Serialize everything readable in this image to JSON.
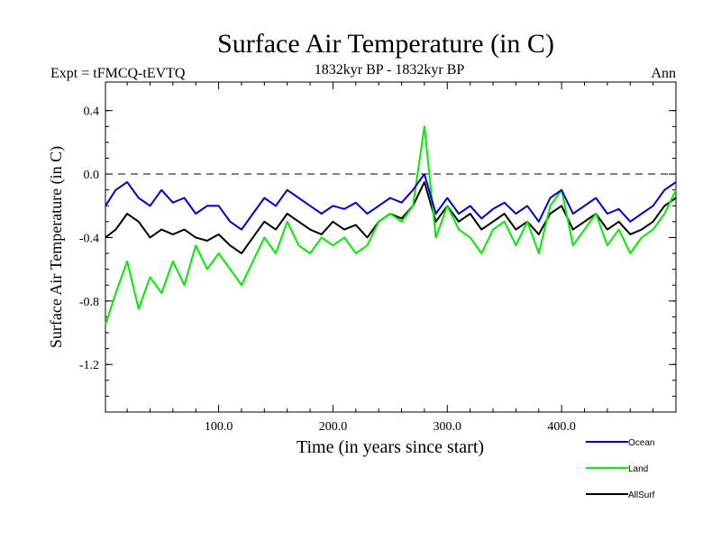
{
  "chart_data": {
    "type": "line",
    "title": "Surface Air Temperature (in C)",
    "subtitle_left": "Expt = tFMCQ-tEVTQ",
    "subtitle_center": "1832kyr BP - 1832kyr BP",
    "subtitle_right": "Ann",
    "xlabel": "Time (in years since start)",
    "ylabel": "Surface Air Temperature (in C)",
    "xlim": [
      1,
      500
    ],
    "ylim": [
      -1.5,
      0.58
    ],
    "x_ticks": [
      100,
      200,
      300,
      400
    ],
    "x_tick_labels": [
      "100.0",
      "200.0",
      "300.0",
      "400.0"
    ],
    "y_ticks": [
      0.4,
      0.0,
      -0.4,
      -0.8,
      -1.2
    ],
    "y_tick_labels": [
      "0.4",
      "0.0",
      "-0.4",
      "-0.8",
      "-1.2"
    ],
    "reference_line": 0.0,
    "series": [
      {
        "name": "AllSurf",
        "color": "#000000",
        "x": [
          1,
          10,
          20,
          30,
          40,
          50,
          60,
          70,
          80,
          90,
          100,
          110,
          120,
          130,
          140,
          150,
          160,
          170,
          180,
          190,
          200,
          210,
          220,
          230,
          240,
          250,
          260,
          270,
          280,
          290,
          300,
          310,
          320,
          330,
          340,
          350,
          360,
          370,
          380,
          390,
          400,
          410,
          420,
          430,
          440,
          450,
          460,
          470,
          480,
          490,
          500
        ],
        "y": [
          -0.4,
          -0.35,
          -0.25,
          -0.3,
          -0.4,
          -0.35,
          -0.38,
          -0.35,
          -0.4,
          -0.42,
          -0.38,
          -0.45,
          -0.5,
          -0.4,
          -0.3,
          -0.35,
          -0.25,
          -0.3,
          -0.35,
          -0.38,
          -0.3,
          -0.35,
          -0.32,
          -0.4,
          -0.3,
          -0.25,
          -0.28,
          -0.2,
          -0.05,
          -0.3,
          -0.2,
          -0.3,
          -0.25,
          -0.35,
          -0.3,
          -0.25,
          -0.35,
          -0.3,
          -0.38,
          -0.25,
          -0.2,
          -0.35,
          -0.3,
          -0.25,
          -0.35,
          -0.3,
          -0.38,
          -0.35,
          -0.3,
          -0.2,
          -0.15
        ]
      },
      {
        "name": "Land",
        "color": "#00ee00",
        "x": [
          1,
          10,
          20,
          30,
          40,
          50,
          60,
          70,
          80,
          90,
          100,
          110,
          120,
          130,
          140,
          150,
          160,
          170,
          180,
          190,
          200,
          210,
          220,
          230,
          240,
          250,
          260,
          270,
          280,
          290,
          300,
          310,
          320,
          330,
          340,
          350,
          360,
          370,
          380,
          390,
          400,
          410,
          420,
          430,
          440,
          450,
          460,
          470,
          480,
          490,
          500
        ],
        "y": [
          -0.95,
          -0.75,
          -0.55,
          -0.85,
          -0.65,
          -0.75,
          -0.55,
          -0.7,
          -0.45,
          -0.6,
          -0.5,
          -0.6,
          -0.7,
          -0.55,
          -0.4,
          -0.5,
          -0.3,
          -0.45,
          -0.5,
          -0.4,
          -0.45,
          -0.4,
          -0.5,
          -0.45,
          -0.3,
          -0.25,
          -0.3,
          -0.2,
          0.3,
          -0.4,
          -0.2,
          -0.35,
          -0.4,
          -0.5,
          -0.35,
          -0.3,
          -0.45,
          -0.3,
          -0.5,
          -0.2,
          -0.1,
          -0.45,
          -0.35,
          -0.25,
          -0.45,
          -0.35,
          -0.5,
          -0.4,
          -0.35,
          -0.25,
          -0.1
        ]
      },
      {
        "name": "Ocean",
        "color": "#0000dd",
        "x": [
          1,
          10,
          20,
          30,
          40,
          50,
          60,
          70,
          80,
          90,
          100,
          110,
          120,
          130,
          140,
          150,
          160,
          170,
          180,
          190,
          200,
          210,
          220,
          230,
          240,
          250,
          260,
          270,
          280,
          290,
          300,
          310,
          320,
          330,
          340,
          350,
          360,
          370,
          380,
          390,
          400,
          410,
          420,
          430,
          440,
          450,
          460,
          470,
          480,
          490,
          500
        ],
        "y": [
          -0.2,
          -0.1,
          -0.05,
          -0.15,
          -0.2,
          -0.1,
          -0.18,
          -0.15,
          -0.25,
          -0.2,
          -0.2,
          -0.3,
          -0.35,
          -0.25,
          -0.15,
          -0.2,
          -0.1,
          -0.15,
          -0.2,
          -0.25,
          -0.2,
          -0.22,
          -0.18,
          -0.25,
          -0.2,
          -0.15,
          -0.18,
          -0.1,
          0.0,
          -0.25,
          -0.15,
          -0.25,
          -0.2,
          -0.28,
          -0.22,
          -0.18,
          -0.25,
          -0.2,
          -0.3,
          -0.15,
          -0.1,
          -0.25,
          -0.2,
          -0.15,
          -0.25,
          -0.22,
          -0.3,
          -0.25,
          -0.2,
          -0.1,
          -0.05
        ]
      }
    ],
    "legend": [
      "Ocean",
      "Land",
      "AllSurf"
    ],
    "legend_placement": "bottom-right"
  }
}
